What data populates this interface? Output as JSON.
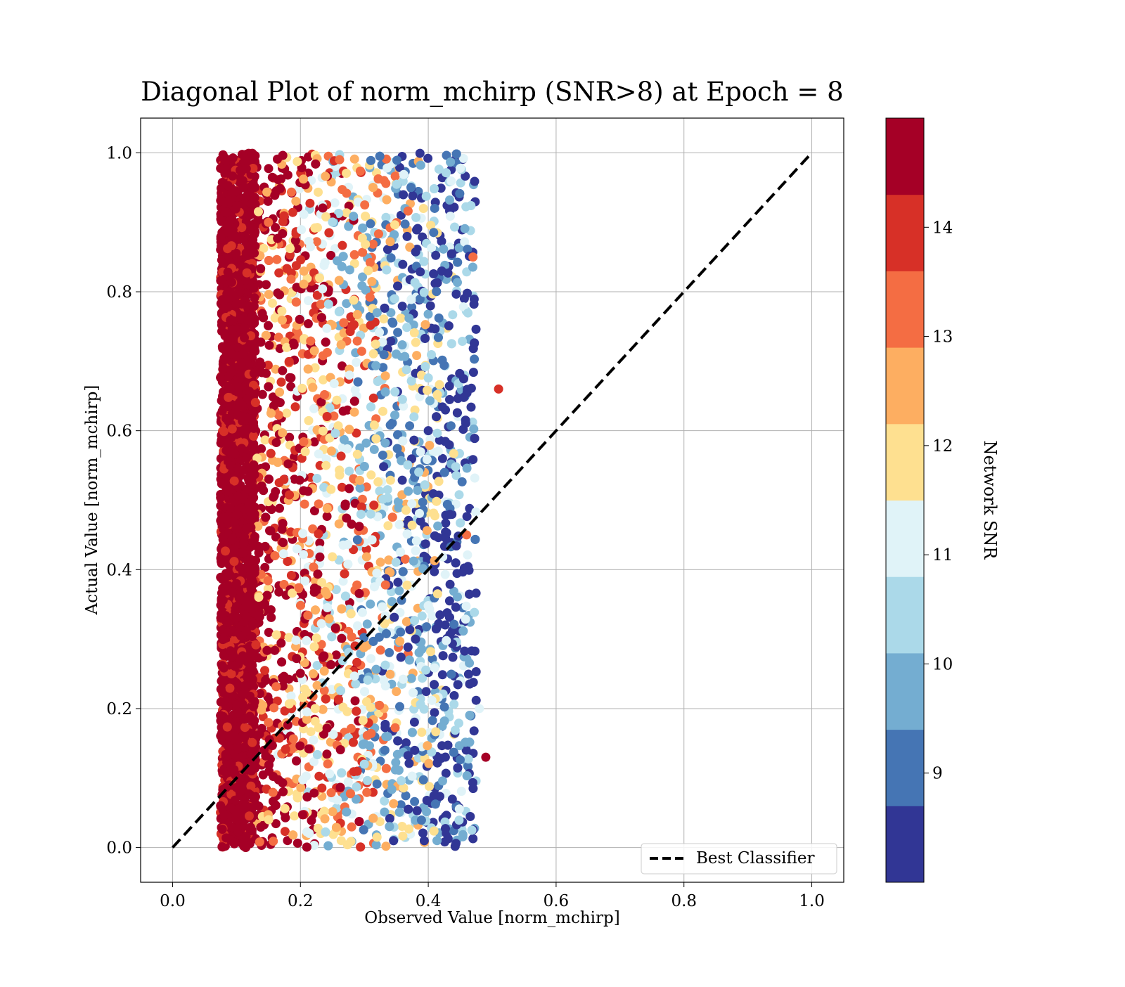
{
  "chart_data": {
    "type": "scatter",
    "title": "Diagonal Plot of norm_mchirp (SNR>8) at Epoch = 8",
    "xlabel": "Observed Value [norm_mchirp]",
    "ylabel": "Actual Value [norm_mchirp]",
    "xlim": [
      -0.05,
      1.05
    ],
    "ylim": [
      -0.05,
      1.05
    ],
    "xticks": [
      "0.0",
      "0.2",
      "0.4",
      "0.6",
      "0.8",
      "1.0"
    ],
    "yticks": [
      "0.0",
      "0.2",
      "0.4",
      "0.6",
      "0.8",
      "1.0"
    ],
    "grid": true,
    "legend": {
      "position": "bottom-right",
      "entries": [
        "Best Classifier"
      ]
    },
    "reference_line": {
      "name": "Best Classifier",
      "x": [
        0.0,
        1.0
      ],
      "y": [
        0.0,
        1.0
      ],
      "style": "dashed",
      "color": "#000000"
    },
    "colorbar": {
      "label": "Network SNR",
      "min": 8.0,
      "max": 15.0,
      "ticks": [
        "9",
        "10",
        "11",
        "12",
        "13",
        "14"
      ],
      "colors": [
        "#313695",
        "#4575b4",
        "#74add1",
        "#abd9e9",
        "#e0f3f8",
        "#fee090",
        "#fdae61",
        "#f46d43",
        "#d73027",
        "#a50026"
      ]
    },
    "points": [
      {
        "x": 0.1,
        "y": 0.05,
        "snr": 14.8
      },
      {
        "x": 0.09,
        "y": 0.12,
        "snr": 14.6
      },
      {
        "x": 0.11,
        "y": 0.22,
        "snr": 14.9
      },
      {
        "x": 0.08,
        "y": 0.3,
        "snr": 14.7
      },
      {
        "x": 0.1,
        "y": 0.38,
        "snr": 14.5
      },
      {
        "x": 0.12,
        "y": 0.46,
        "snr": 14.8
      },
      {
        "x": 0.09,
        "y": 0.55,
        "snr": 14.9
      },
      {
        "x": 0.1,
        "y": 0.63,
        "snr": 14.6
      },
      {
        "x": 0.11,
        "y": 0.71,
        "snr": 14.8
      },
      {
        "x": 0.09,
        "y": 0.8,
        "snr": 14.7
      },
      {
        "x": 0.1,
        "y": 0.88,
        "snr": 14.9
      },
      {
        "x": 0.11,
        "y": 0.96,
        "snr": 14.5
      },
      {
        "x": 0.15,
        "y": 0.18,
        "snr": 13.6
      },
      {
        "x": 0.16,
        "y": 0.42,
        "snr": 13.2
      },
      {
        "x": 0.17,
        "y": 0.67,
        "snr": 13.8
      },
      {
        "x": 0.15,
        "y": 0.9,
        "snr": 12.9
      },
      {
        "x": 0.22,
        "y": 0.25,
        "snr": 12.3
      },
      {
        "x": 0.24,
        "y": 0.55,
        "snr": 11.8
      },
      {
        "x": 0.23,
        "y": 0.82,
        "snr": 12.1
      },
      {
        "x": 0.3,
        "y": 0.12,
        "snr": 10.5
      },
      {
        "x": 0.31,
        "y": 0.48,
        "snr": 10.2
      },
      {
        "x": 0.32,
        "y": 0.77,
        "snr": 9.6
      },
      {
        "x": 0.38,
        "y": 0.3,
        "snr": 8.7
      },
      {
        "x": 0.4,
        "y": 0.6,
        "snr": 8.4
      },
      {
        "x": 0.41,
        "y": 0.92,
        "snr": 8.9
      },
      {
        "x": 0.46,
        "y": 0.45,
        "snr": 13.4
      },
      {
        "x": 0.48,
        "y": 0.2,
        "snr": 10.8
      },
      {
        "x": 0.51,
        "y": 0.66,
        "snr": 14.2
      },
      {
        "x": 0.49,
        "y": 0.13,
        "snr": 14.4
      },
      {
        "x": 0.47,
        "y": 0.85,
        "snr": 13.1
      }
    ]
  }
}
